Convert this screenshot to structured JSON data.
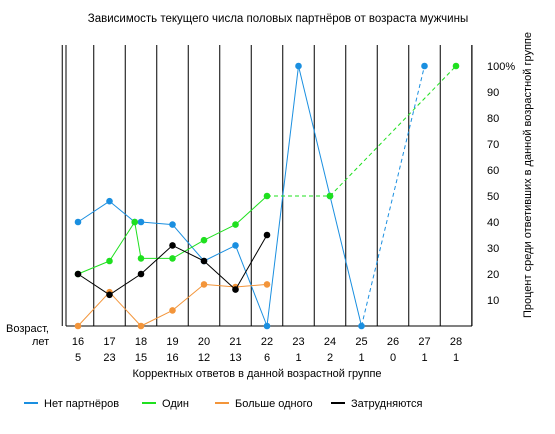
{
  "chart_data": {
    "type": "line",
    "title": "Зависимость текущего числа половых партнёров от  возраста мужчины",
    "xlabel": "Корректных  ответов  в  данной  возрастной  группе",
    "x_axis_label": "Возраст,\nлет",
    "ylabel": "Процент  среди  ответивших  в  данной  возрастной  группе",
    "categories": [
      "16",
      "17",
      "18",
      "19",
      "20",
      "21",
      "22",
      "23",
      "24",
      "25",
      "26",
      "27",
      "28"
    ],
    "counts": [
      "5",
      "23",
      "15",
      "16",
      "12",
      "13",
      "6",
      "1",
      "2",
      "1",
      "0",
      "1",
      "1"
    ],
    "y_ticks": [
      "10",
      "20",
      "30",
      "40",
      "50",
      "60",
      "70",
      "80",
      "90",
      "100%"
    ],
    "ylim": [
      0,
      100
    ],
    "legend_position": "bottom",
    "series": [
      {
        "name": "Нет партнёров",
        "color": "#1a8fe0",
        "points": [
          [
            16,
            40
          ],
          [
            17,
            48
          ],
          [
            17.8,
            40
          ],
          [
            18,
            40
          ],
          [
            19,
            39
          ],
          [
            20,
            25
          ],
          [
            21,
            31
          ],
          [
            22,
            0
          ],
          [
            23,
            100
          ],
          [
            24,
            50
          ],
          [
            25,
            0
          ],
          [
            27,
            100
          ]
        ],
        "dashed_from": 25
      },
      {
        "name": "Один",
        "color": "#1fe01f",
        "points": [
          [
            16,
            20
          ],
          [
            17,
            25
          ],
          [
            17.8,
            40
          ],
          [
            18,
            26
          ],
          [
            19,
            26
          ],
          [
            20,
            33
          ],
          [
            21,
            39
          ],
          [
            22,
            50
          ],
          [
            24,
            50
          ],
          [
            28,
            100
          ]
        ],
        "dashed_from": 22
      },
      {
        "name": "Больше одного",
        "color": "#f3953a",
        "points": [
          [
            16,
            0
          ],
          [
            17,
            13
          ],
          [
            18,
            0
          ],
          [
            19,
            6
          ],
          [
            20,
            16
          ],
          [
            21,
            15
          ],
          [
            22,
            16
          ]
        ]
      },
      {
        "name": "Затрудняются",
        "color": "#000000",
        "points": [
          [
            16,
            20
          ],
          [
            17,
            12
          ],
          [
            18,
            20
          ],
          [
            19,
            31
          ],
          [
            20,
            25
          ],
          [
            21,
            14
          ],
          [
            22,
            35
          ]
        ]
      }
    ]
  }
}
